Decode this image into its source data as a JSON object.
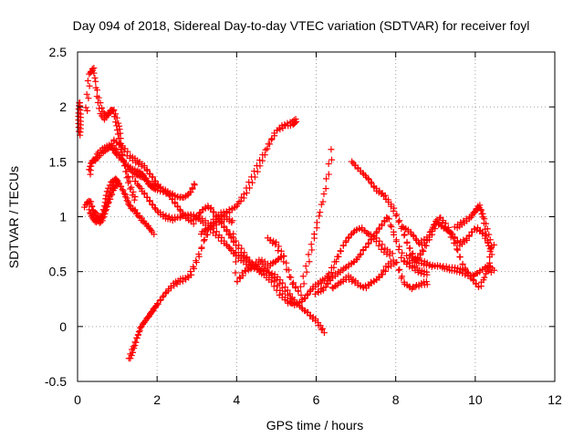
{
  "chart_data": {
    "type": "scatter",
    "title": "Day 094 of 2018, Sidereal Day-to-day VTEC variation (SDTVAR) for receiver foyl",
    "xlabel": "GPS time / hours",
    "ylabel": "SDTVAR / TECUs",
    "xlim": [
      0,
      12
    ],
    "ylim": [
      -0.5,
      2.5
    ],
    "xticks": [
      "0",
      "2",
      "4",
      "6",
      "8",
      "10",
      "12"
    ],
    "yticks": [
      "-0.5",
      "0",
      "0.5",
      "1",
      "1.5",
      "2",
      "2.5"
    ],
    "grid": true,
    "marker": "+",
    "color": "#ff0000",
    "series": [
      {
        "x": [
          0.22,
          0.3,
          0.4,
          0.5,
          0.6,
          0.7,
          0.8,
          0.9,
          1.0,
          1.05,
          1.1,
          1.2,
          1.3,
          1.45
        ],
        "y": [
          1.95,
          2.3,
          2.35,
          2.1,
          1.95,
          1.9,
          1.95,
          1.98,
          1.85,
          1.75,
          1.6,
          1.45,
          1.3,
          1.15
        ]
      },
      {
        "x": [
          0.3,
          0.35,
          0.45,
          0.55,
          0.7,
          0.85,
          0.95,
          1.05,
          1.2,
          1.35,
          1.5,
          1.6,
          1.7,
          1.8,
          1.9,
          2.0,
          2.2,
          2.4,
          2.6,
          2.8,
          2.95
        ],
        "y": [
          1.4,
          1.5,
          1.52,
          1.58,
          1.62,
          1.65,
          1.6,
          1.55,
          1.48,
          1.43,
          1.4,
          1.38,
          1.35,
          1.3,
          1.28,
          1.26,
          1.23,
          1.2,
          1.17,
          1.2,
          1.3
        ]
      },
      {
        "x": [
          0.3,
          0.4,
          0.5,
          0.6,
          0.7,
          0.75,
          0.85,
          0.95,
          1.05,
          1.2,
          1.3,
          1.45,
          1.6,
          1.75,
          1.9
        ],
        "y": [
          1.05,
          0.98,
          0.95,
          1.0,
          1.1,
          1.2,
          1.3,
          1.35,
          1.3,
          1.2,
          1.1,
          1.05,
          0.98,
          0.92,
          0.85
        ]
      },
      {
        "x": [
          0.2,
          0.3,
          0.4,
          0.5,
          0.6,
          0.7,
          0.8,
          0.9,
          1.0
        ],
        "y": [
          1.1,
          1.15,
          1.05,
          1.0,
          0.95,
          1.05,
          1.15,
          1.25,
          1.3
        ]
      },
      {
        "x": [
          1.4,
          1.6,
          1.8,
          2.0,
          2.2,
          2.4,
          2.6,
          2.8,
          3.0,
          3.2,
          3.4,
          3.6,
          3.8,
          4.0,
          4.2,
          4.4,
          4.6,
          4.8,
          5.0,
          5.2,
          5.4,
          5.6,
          5.8,
          6.0,
          6.2
        ],
        "y": [
          1.35,
          1.25,
          1.15,
          1.05,
          1.0,
          0.98,
          1.0,
          1.02,
          1.0,
          0.95,
          0.88,
          0.8,
          0.72,
          0.65,
          0.6,
          0.55,
          0.52,
          0.5,
          0.45,
          0.35,
          0.25,
          0.18,
          0.12,
          0.05,
          -0.05
        ]
      },
      {
        "x": [
          0.9,
          1.1,
          1.3,
          1.5,
          1.7,
          1.9,
          2.1,
          2.3,
          2.5,
          2.7,
          2.9,
          3.1,
          3.3,
          3.5,
          3.7,
          3.9,
          4.1,
          4.3,
          4.5,
          4.7,
          4.9,
          5.1,
          5.3,
          5.5,
          5.7,
          5.9,
          6.1,
          6.3
        ],
        "y": [
          1.7,
          1.65,
          1.55,
          1.5,
          1.45,
          1.35,
          1.25,
          1.2,
          1.1,
          1.0,
          0.95,
          1.05,
          1.1,
          1.0,
          0.9,
          0.8,
          0.7,
          0.6,
          0.52,
          0.48,
          0.42,
          0.3,
          0.22,
          0.2,
          0.25,
          0.35,
          0.4,
          0.45
        ]
      },
      {
        "x": [
          1.3,
          1.4,
          1.5,
          1.6,
          1.7,
          1.8,
          1.9,
          2.0,
          2.2,
          2.4,
          2.6,
          2.8,
          3.0,
          3.2,
          3.4,
          3.6,
          3.8,
          4.0,
          4.2,
          4.4,
          4.6,
          4.8,
          5.0,
          5.2,
          5.4,
          5.5
        ],
        "y": [
          -0.3,
          -0.2,
          -0.1,
          0.0,
          0.05,
          0.1,
          0.15,
          0.2,
          0.3,
          0.38,
          0.42,
          0.45,
          0.6,
          0.8,
          0.95,
          1.02,
          1.05,
          1.1,
          1.2,
          1.35,
          1.5,
          1.65,
          1.78,
          1.83,
          1.85,
          1.88
        ]
      },
      {
        "x": [
          3.1,
          3.3,
          3.5,
          3.7,
          3.9,
          4.0,
          4.2,
          4.4,
          4.6,
          4.8,
          5.0,
          5.2
        ],
        "y": [
          0.85,
          0.9,
          0.95,
          1.0,
          0.95,
          0.4,
          0.5,
          0.55,
          0.6,
          0.55,
          0.6,
          0.65
        ]
      },
      {
        "x": [
          4.8,
          5.0,
          5.2,
          5.4,
          5.6,
          5.8,
          6.0,
          6.2,
          6.4
        ],
        "y": [
          0.8,
          0.75,
          0.6,
          0.4,
          0.3,
          0.6,
          0.9,
          1.2,
          1.6
        ]
      },
      {
        "x": [
          6.0,
          6.2,
          6.4,
          6.6,
          6.8,
          7.0,
          7.2,
          7.4,
          7.6,
          7.8,
          8.0,
          8.2,
          8.4,
          8.6,
          8.8
        ],
        "y": [
          0.3,
          0.35,
          0.45,
          0.5,
          0.55,
          0.6,
          0.7,
          0.8,
          0.9,
          1.0,
          0.8,
          0.6,
          0.55,
          0.5,
          0.48
        ]
      },
      {
        "x": [
          6.9,
          7.1,
          7.3,
          7.5,
          7.7,
          7.9,
          8.1,
          8.3,
          8.5,
          8.7,
          8.9,
          9.1,
          9.3,
          9.5,
          9.7,
          9.9,
          10.1,
          10.3,
          10.45
        ],
        "y": [
          1.5,
          1.42,
          1.35,
          1.25,
          1.2,
          1.1,
          0.95,
          0.75,
          0.6,
          0.58,
          0.55,
          0.55,
          0.53,
          0.52,
          0.5,
          0.45,
          0.5,
          0.55,
          0.5
        ]
      },
      {
        "x": [
          6.4,
          6.6,
          6.8,
          7.0,
          7.2,
          7.4,
          7.6,
          7.8,
          8.0,
          8.2,
          8.4,
          8.6,
          8.8
        ],
        "y": [
          0.35,
          0.4,
          0.45,
          0.4,
          0.35,
          0.4,
          0.45,
          0.55,
          0.6,
          0.4,
          0.35,
          0.38,
          0.4
        ]
      },
      {
        "x": [
          6.3,
          6.5,
          6.7,
          6.9,
          7.1,
          7.3,
          7.5,
          7.7,
          7.9
        ],
        "y": [
          0.45,
          0.6,
          0.75,
          0.85,
          0.9,
          0.85,
          0.8,
          0.7,
          0.65
        ]
      },
      {
        "x": [
          8.2,
          8.4,
          8.6,
          8.8,
          9.0,
          9.2,
          9.4,
          9.6,
          9.8,
          10.0,
          10.2,
          10.4
        ],
        "y": [
          0.9,
          0.85,
          0.75,
          0.8,
          0.95,
          0.9,
          0.85,
          0.75,
          0.8,
          0.9,
          0.85,
          0.7
        ]
      },
      {
        "x": [
          8.3,
          8.5,
          8.7,
          8.9,
          9.1,
          9.3,
          9.5,
          9.7,
          9.9,
          10.1,
          10.3,
          10.45
        ],
        "y": [
          0.65,
          0.6,
          0.7,
          0.85,
          1.0,
          0.9,
          0.75,
          0.55,
          0.45,
          0.35,
          0.5,
          0.75
        ]
      },
      {
        "x": [
          9.5,
          9.7,
          9.9,
          10.0,
          10.1,
          10.2,
          10.3,
          10.4
        ],
        "y": [
          0.9,
          0.95,
          1.0,
          1.05,
          1.1,
          1.0,
          0.85,
          0.7
        ]
      },
      {
        "x": [
          0.05,
          0.05,
          0.05,
          0.05
        ],
        "y": [
          1.75,
          1.85,
          1.95,
          2.05
        ]
      }
    ]
  }
}
